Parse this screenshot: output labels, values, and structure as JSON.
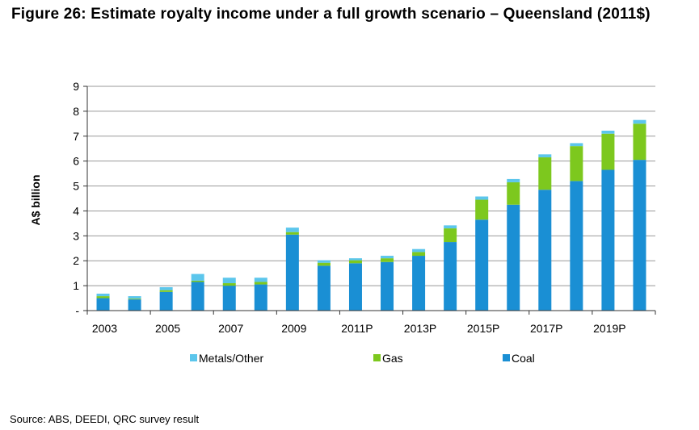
{
  "title": "Figure 26: Estimate royalty income under a full growth scenario – Queensland (2011$)",
  "source": "Source: ABS, DEEDI, QRC survey result",
  "colors": {
    "coal": "#1a8fd4",
    "gas": "#7dc81e",
    "metals": "#5cc6ec",
    "grid": "#999999",
    "axis": "#333333"
  },
  "chart_data": {
    "type": "bar",
    "stacked": true,
    "title": "Figure 26: Estimate royalty income under a full growth scenario – Queensland (2011$)",
    "xlabel": "",
    "ylabel": "A$ billion",
    "ylim": [
      0,
      9
    ],
    "yticks": [
      0,
      1,
      2,
      3,
      4,
      5,
      6,
      7,
      8,
      9
    ],
    "ytick_labels": [
      "-",
      "1",
      "2",
      "3",
      "4",
      "5",
      "6",
      "7",
      "8",
      "9"
    ],
    "grid": true,
    "legend_position": "bottom",
    "categories": [
      "2003",
      "2004",
      "2005",
      "2006",
      "2007",
      "2008",
      "2009",
      "2010",
      "2011P",
      "2012P",
      "2013P",
      "2014P",
      "2015P",
      "2016P",
      "2017P",
      "2018P",
      "2019P",
      "2020P"
    ],
    "xtick_labels": [
      "2003",
      "",
      "2005",
      "",
      "2007",
      "",
      "2009",
      "",
      "2011P",
      "",
      "2013P",
      "",
      "2015P",
      "",
      "2017P",
      "",
      "2019P",
      ""
    ],
    "series": [
      {
        "name": "Coal",
        "values": [
          0.5,
          0.45,
          0.75,
          1.15,
          1.0,
          1.05,
          3.05,
          1.8,
          1.9,
          1.95,
          2.2,
          2.75,
          3.65,
          4.25,
          4.85,
          5.2,
          5.65,
          6.05
        ]
      },
      {
        "name": "Gas",
        "values": [
          0.08,
          0.03,
          0.07,
          0.05,
          0.1,
          0.1,
          0.1,
          0.12,
          0.12,
          0.15,
          0.15,
          0.55,
          0.8,
          0.9,
          1.3,
          1.4,
          1.45,
          1.45
        ]
      },
      {
        "name": "Metals/Other",
        "values": [
          0.1,
          0.1,
          0.12,
          0.27,
          0.22,
          0.17,
          0.18,
          0.1,
          0.08,
          0.1,
          0.12,
          0.12,
          0.13,
          0.13,
          0.12,
          0.12,
          0.12,
          0.15
        ]
      }
    ],
    "legend": [
      "Metals/Other",
      "Gas",
      "Coal"
    ]
  }
}
